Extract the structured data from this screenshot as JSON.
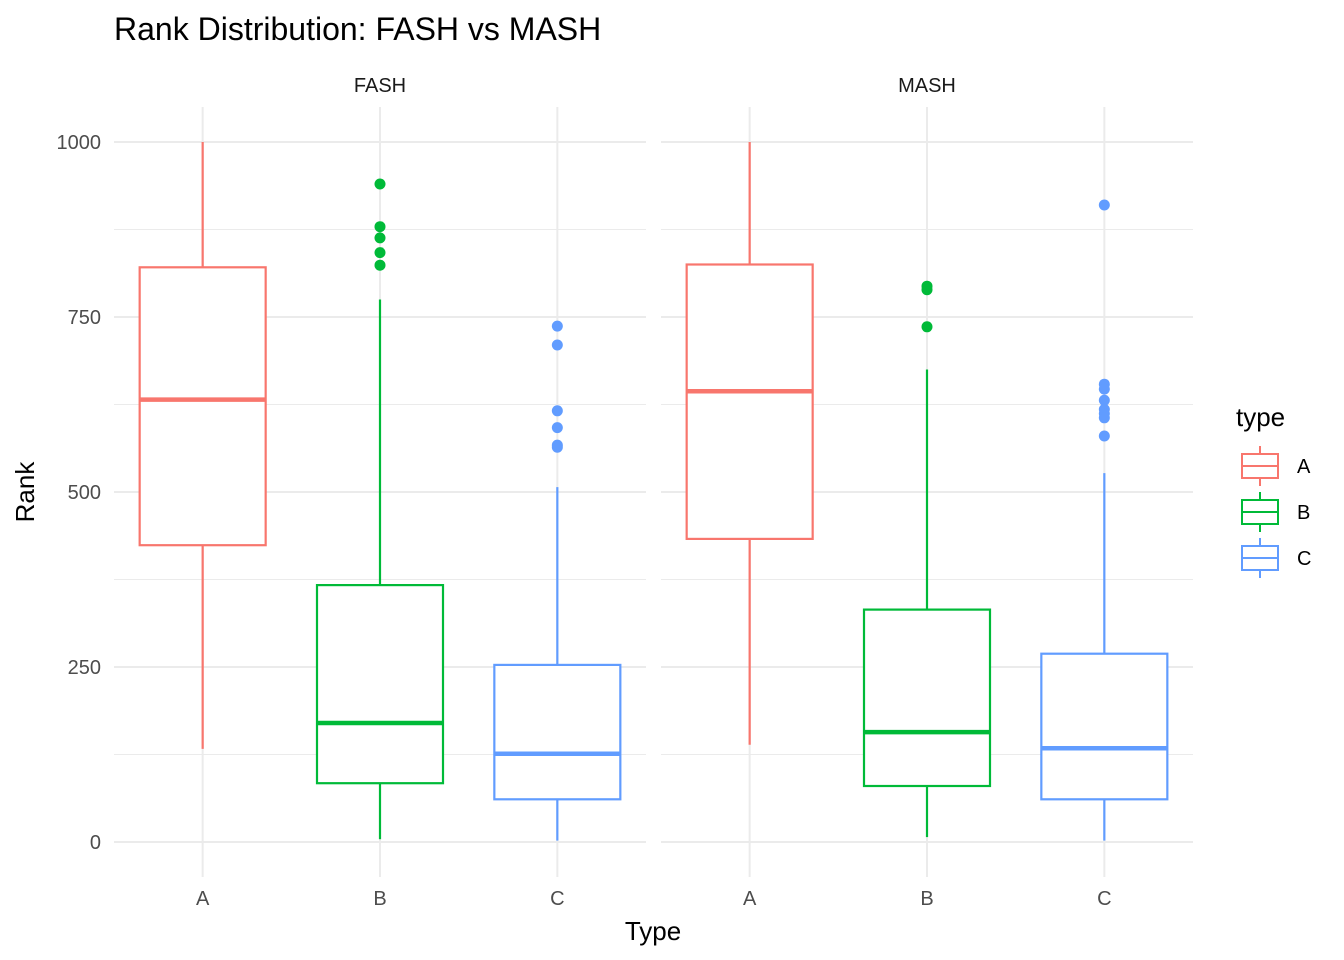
{
  "chart_data": {
    "type": "boxplot",
    "title": "Rank Distribution: FASH vs MASH",
    "xlabel": "Type",
    "ylabel": "Rank",
    "ylim": [
      0,
      1000
    ],
    "y_ticks": [
      "0",
      "250",
      "500",
      "750",
      "1000"
    ],
    "categories": [
      "A",
      "B",
      "C"
    ],
    "grid": true,
    "legend": {
      "title": "type",
      "placement": "right",
      "entries": [
        {
          "label": "A",
          "color": "#F8766D"
        },
        {
          "label": "B",
          "color": "#00BA38"
        },
        {
          "label": "C",
          "color": "#619CFF"
        }
      ]
    },
    "panels": [
      {
        "name": "FASH",
        "boxes": [
          {
            "category": "A",
            "min": 133,
            "q1": 424,
            "median": 632,
            "q3": 821,
            "max": 1000,
            "outliers": []
          },
          {
            "category": "B",
            "min": 4,
            "q1": 84,
            "median": 170,
            "q3": 367,
            "max": 775,
            "outliers": [
              940,
              879,
              863,
              842,
              824
            ]
          },
          {
            "category": "C",
            "min": 2,
            "q1": 61,
            "median": 126,
            "q3": 253,
            "max": 507,
            "outliers": [
              737,
              710,
              616,
              592,
              567,
              564
            ]
          }
        ]
      },
      {
        "name": "MASH",
        "boxes": [
          {
            "category": "A",
            "min": 139,
            "q1": 433,
            "median": 644,
            "q3": 825,
            "max": 1000,
            "outliers": []
          },
          {
            "category": "B",
            "min": 7,
            "q1": 80,
            "median": 157,
            "q3": 332,
            "max": 675,
            "outliers": [
              794,
              789,
              736
            ]
          },
          {
            "category": "C",
            "min": 2,
            "q1": 61,
            "median": 134,
            "q3": 269,
            "max": 527,
            "outliers": [
              910,
              654,
              647,
              631,
              618,
              612,
              606,
              580
            ]
          }
        ]
      }
    ]
  }
}
